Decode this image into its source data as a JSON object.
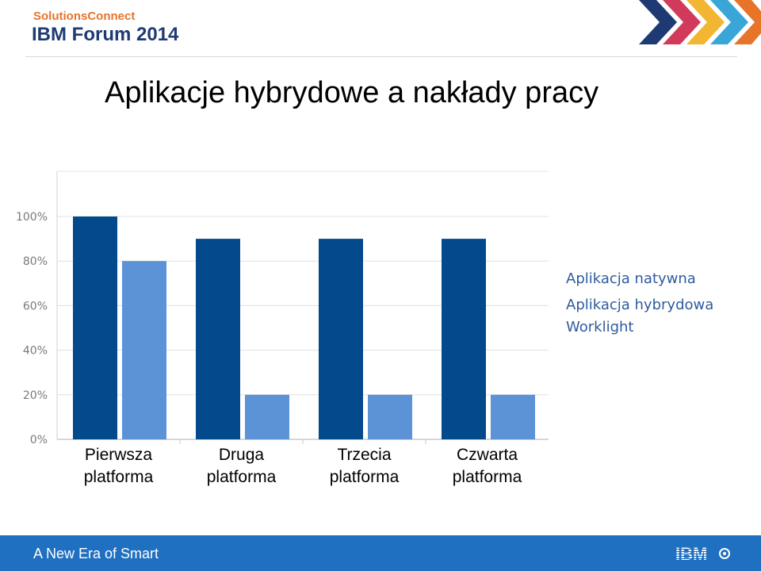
{
  "header": {
    "brand_sub": "SolutionsConnect",
    "brand_main": "IBM Forum 2014"
  },
  "title": "Aplikacje hybrydowe a nakłady pracy",
  "footer": {
    "tagline": "A New Era of Smart",
    "logo_text": "IBM"
  },
  "colors": {
    "native": "#034a8c",
    "hybrid": "#5c92d6",
    "legend_text": "#2e5b9e",
    "footer": "#1f70c1"
  },
  "chart_data": {
    "type": "bar",
    "categories": [
      [
        "Pierwsza",
        "platforma"
      ],
      [
        "Druga",
        "platforma"
      ],
      [
        "Trzecia",
        "platforma"
      ],
      [
        "Czwarta",
        "platforma"
      ]
    ],
    "yticks": [
      "0%",
      "20%",
      "40%",
      "60%",
      "80%",
      "100%"
    ],
    "ylim": [
      0,
      100
    ],
    "grid": true,
    "legend_position": "right",
    "series": [
      {
        "name": "Aplikacja natywna",
        "values": [
          100,
          90,
          90,
          90
        ]
      },
      {
        "name": "Aplikacja hybrydowa Worklight",
        "values": [
          80,
          20,
          20,
          20
        ]
      }
    ]
  }
}
